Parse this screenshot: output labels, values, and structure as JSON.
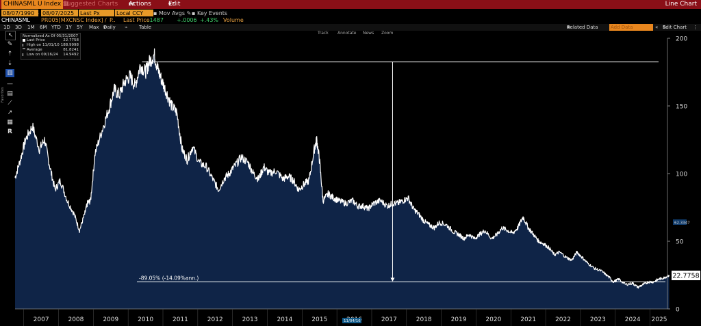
{
  "header": {
    "ticker": "CHINASML U Index",
    "suggested_charts": "Suggested Charts",
    "actions": "Actions",
    "actions_num": "96",
    "edit": "Edit",
    "edit_num": "97",
    "chart_type": "Line Chart"
  },
  "controls": {
    "start_date": "08/07/1990",
    "end_date": "08/07/2025",
    "price_field": "Last Px",
    "currency": "Local CCY",
    "mov_avgs": "Mov Avgs",
    "key_events": "Key Events"
  },
  "quote": {
    "ticker": "CHINASML",
    "compare": "PR005[MXCNSC Index] /",
    "p_label": "P..",
    "last_price_label": "Last Price",
    "last_price": ".1487",
    "change": "+.0006",
    "change_pct": "+.43%",
    "volume_label": "Volume"
  },
  "periods": [
    "1D",
    "3D",
    "1M",
    "6M",
    "YTD",
    "1Y",
    "5Y",
    "Max"
  ],
  "frequency": "Daily",
  "table_label": "Table",
  "related_data": "Related Data",
  "add_data": "Add Data",
  "edit_chart": "Edit Chart",
  "annotation_tabs": [
    "Track",
    "Annotate",
    "News",
    "Zoom"
  ],
  "side_label": "Favorites",
  "legend": {
    "title": "Normalized As Of 05/31/2007",
    "rows": [
      {
        "key": "Last Price",
        "value": "22.7758"
      },
      {
        "key": "High on 11/01/10",
        "value": "188.9998"
      },
      {
        "key": "Average",
        "value": "81.8241"
      },
      {
        "key": "Low on 09/16/24",
        "value": "14.9492"
      }
    ]
  },
  "colors": {
    "line": "#ffffff",
    "fill": "#0f2447",
    "topbar": "#8a0f17",
    "accent": "#e8861e"
  },
  "chart_data": {
    "type": "area",
    "x_range": [
      2006.75,
      2025.5
    ],
    "ylim": [
      0,
      200
    ],
    "y_ticks": [
      0,
      50,
      100,
      150,
      200
    ],
    "x_tick_labels": [
      "2007",
      "2008",
      "2009",
      "2010",
      "2011",
      "2012",
      "2013",
      "2014",
      "2015",
      "2016",
      "2017",
      "2018",
      "2019",
      "2020",
      "2021",
      "2022",
      "2023",
      "2024",
      "2025"
    ],
    "last_value_label": "22.7758",
    "marker_value": "62.3347",
    "cursor_label": "11/04/16",
    "annotation": {
      "text": "-89.05% (-14.09%ann.)",
      "high": 182.5,
      "low": 20,
      "x_start": 2010.4,
      "x_end": 2024.9,
      "arrow_x": 2017.6
    },
    "x": [
      2006.75,
      2006.9,
      2007.05,
      2007.25,
      2007.45,
      2007.6,
      2007.75,
      2007.9,
      2008.05,
      2008.25,
      2008.45,
      2008.6,
      2008.75,
      2008.83,
      2008.92,
      2009.05,
      2009.25,
      2009.45,
      2009.6,
      2009.75,
      2009.9,
      2010.05,
      2010.2,
      2010.35,
      2010.5,
      2010.6,
      2010.75,
      2010.84,
      2010.95,
      2011.1,
      2011.25,
      2011.4,
      2011.55,
      2011.7,
      2011.85,
      2012.05,
      2012.25,
      2012.45,
      2012.6,
      2012.75,
      2012.9,
      2013.05,
      2013.25,
      2013.45,
      2013.6,
      2013.75,
      2013.9,
      2014.05,
      2014.25,
      2014.45,
      2014.6,
      2014.75,
      2014.9,
      2015.05,
      2015.2,
      2015.35,
      2015.42,
      2015.5,
      2015.6,
      2015.75,
      2015.9,
      2016.05,
      2016.25,
      2016.45,
      2016.6,
      2016.75,
      2016.9,
      2017.05,
      2017.25,
      2017.45,
      2017.6,
      2017.75,
      2017.9,
      2018.05,
      2018.2,
      2018.35,
      2018.5,
      2018.65,
      2018.8,
      2018.95,
      2019.15,
      2019.35,
      2019.5,
      2019.65,
      2019.8,
      2019.95,
      2020.1,
      2020.25,
      2020.45,
      2020.6,
      2020.75,
      2020.9,
      2021.05,
      2021.2,
      2021.35,
      2021.5,
      2021.65,
      2021.8,
      2021.95,
      2022.1,
      2022.25,
      2022.4,
      2022.6,
      2022.75,
      2022.9,
      2023.05,
      2023.2,
      2023.4,
      2023.6,
      2023.8,
      2023.95,
      2024.1,
      2024.3,
      2024.5,
      2024.65,
      2024.8,
      2024.95,
      2025.1,
      2025.25,
      2025.4,
      2025.55
    ],
    "y": [
      97,
      110,
      125,
      135,
      118,
      125,
      105,
      88,
      95,
      80,
      70,
      58,
      70,
      78,
      80,
      115,
      132,
      148,
      162,
      158,
      168,
      172,
      165,
      180,
      175,
      182,
      188,
      178,
      170,
      160,
      150,
      145,
      118,
      110,
      120,
      108,
      105,
      95,
      88,
      96,
      100,
      105,
      112,
      108,
      100,
      96,
      105,
      100,
      102,
      96,
      98,
      95,
      88,
      92,
      95,
      118,
      125,
      110,
      80,
      85,
      82,
      80,
      78,
      80,
      76,
      76,
      74,
      78,
      80,
      76,
      78,
      78,
      80,
      82,
      74,
      70,
      65,
      62,
      60,
      64,
      62,
      57,
      55,
      52,
      55,
      52,
      55,
      58,
      52,
      55,
      60,
      58,
      56,
      60,
      68,
      60,
      55,
      50,
      48,
      45,
      40,
      42,
      38,
      36,
      42,
      38,
      34,
      30,
      28,
      24,
      20,
      22,
      18,
      19,
      16,
      18,
      20,
      20,
      22,
      23,
      25
    ]
  }
}
